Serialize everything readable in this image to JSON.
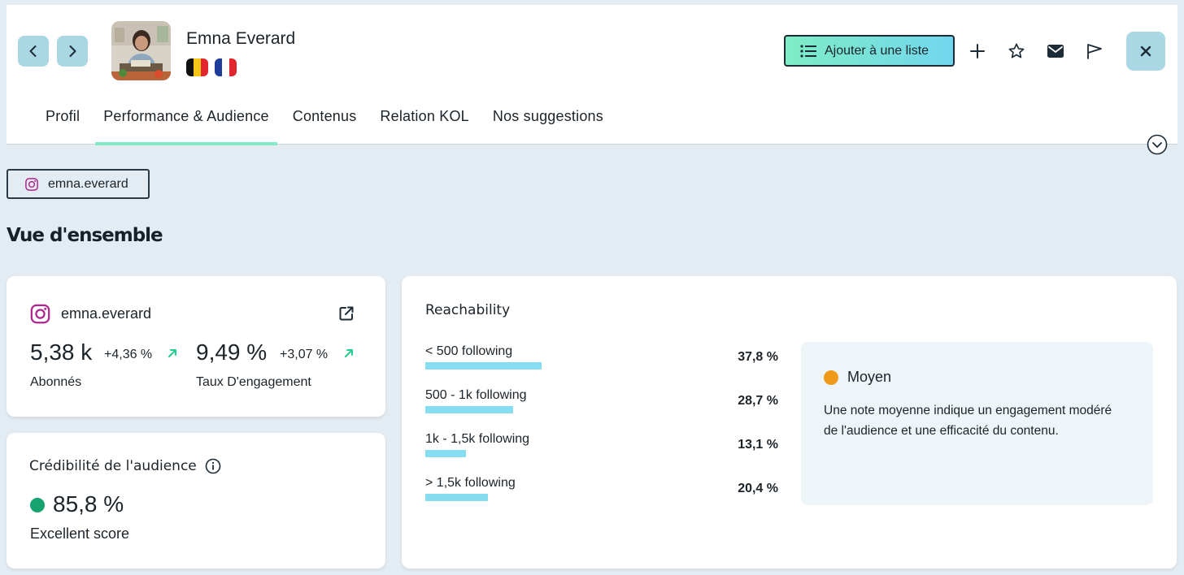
{
  "header": {
    "profile_name": "Emna Everard",
    "countries": [
      "Belgium",
      "France"
    ],
    "add_to_list_label": "Ajouter à une liste",
    "icons": [
      "chevron-left-icon",
      "chevron-right-icon",
      "list-icon",
      "plus-icon",
      "star-icon",
      "mail-icon",
      "flag-icon",
      "close-icon",
      "chevron-down-icon"
    ]
  },
  "tabs": [
    {
      "label": "Profil",
      "active": false
    },
    {
      "label": "Performance & Audience",
      "active": true
    },
    {
      "label": "Contenus",
      "active": false
    },
    {
      "label": "Relation KOL",
      "active": false
    },
    {
      "label": "Nos suggestions",
      "active": false
    }
  ],
  "account_chip": {
    "handle": "emna.everard"
  },
  "overview": {
    "title": "Vue d'ensemble"
  },
  "instagram_card": {
    "handle": "emna.everard",
    "followers_value": "5,38 k",
    "followers_delta": "+4,36 %",
    "followers_label": "Abonnés",
    "engagement_value": "9,49 %",
    "engagement_delta": "+3,07 %",
    "engagement_label": "Taux D'engagement"
  },
  "credibility": {
    "title": "Crédibilité de l'audience",
    "value": "85,8 %",
    "label": "Excellent score",
    "status_color": "#16a36f"
  },
  "reachability": {
    "title": "Reachability",
    "rows": [
      {
        "label": "< 500 following",
        "pct": "37,8 %",
        "value": 37.8
      },
      {
        "label": "500 - 1k following",
        "pct": "28,7 %",
        "value": 28.7
      },
      {
        "label": "1k - 1,5k following",
        "pct": "13,1 %",
        "value": 13.1
      },
      {
        "label": "> 1,5k following",
        "pct": "20,4 %",
        "value": 20.4
      }
    ],
    "note": {
      "level": "Moyen",
      "level_color": "#f09a1c",
      "text": "Une note moyenne indique un engagement modéré de l'audience et une efficacité du contenu."
    }
  },
  "colors": {
    "accent": "#82ebc6",
    "button_bg": "#a9d7e3",
    "bar": "#86dcf0",
    "positive_arrow": "#1fcf8c"
  }
}
